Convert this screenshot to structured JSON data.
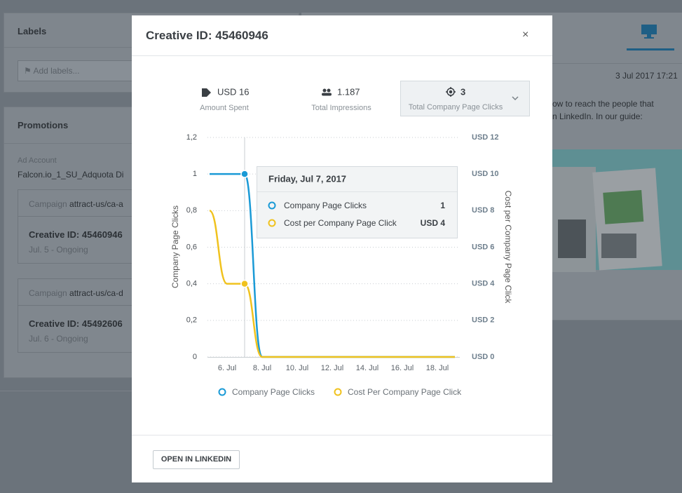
{
  "sidebar": {
    "labels_title": "Labels",
    "labels_placeholder": "Add labels...",
    "promotions_title": "Promotions",
    "ad_account_label": "Ad Account",
    "ad_account_value": "Falcon.io_1_SU_Adquota Di",
    "campaigns": [
      {
        "campaign_label": "Campaign",
        "campaign_value": "attract-us/ca-a",
        "creative": "Creative ID: 45460946",
        "dates": "Jul. 5 - Ongoing"
      },
      {
        "campaign_label": "Campaign",
        "campaign_value": "attract-us/ca-d",
        "creative": "Creative ID: 45492606",
        "dates": "Jul. 6 - Ongoing"
      }
    ]
  },
  "preview": {
    "timestamp": "3 Jul 2017 17:21",
    "lines": [
      "ow to reach the people that",
      "n LinkedIn. In our guide:"
    ]
  },
  "modal": {
    "title": "Creative ID: 45460946",
    "close": "×",
    "stats": [
      {
        "value": "USD 16",
        "label": "Amount Spent"
      },
      {
        "value": "1.187",
        "label": "Total Impressions"
      },
      {
        "value": "3",
        "label": "Total Company Page Clicks"
      }
    ],
    "tooltip": {
      "title": "Friday, Jul 7, 2017",
      "items": [
        {
          "name": "Company Page Clicks",
          "value": "1"
        },
        {
          "name": "Cost per Company Page Click",
          "value": "USD 4"
        }
      ]
    },
    "button": "OPEN IN LINKEDIN"
  },
  "chart_data": {
    "type": "line",
    "y_label": "Company Page Clicks",
    "y2_label": "Cost per Company Page Click",
    "categories": [
      null,
      "6. Jul",
      null,
      "8. Jul",
      null,
      "10. Jul",
      null,
      "12. Jul",
      null,
      "14. Jul",
      null,
      "16. Jul",
      null,
      "18. Jul",
      null
    ],
    "series": [
      {
        "name": "Company Page Clicks",
        "color": "#1a9ad6",
        "values": [
          1,
          1,
          1,
          0,
          0,
          0,
          0,
          0,
          0,
          0,
          0,
          0,
          0,
          0,
          0
        ]
      },
      {
        "name": "Cost Per Company Page Click",
        "color": "#f0c21e",
        "axis": "y2",
        "values": [
          8,
          4,
          4,
          0,
          0,
          0,
          0,
          0,
          0,
          0,
          0,
          0,
          0,
          0,
          0
        ]
      }
    ],
    "ylim": [
      0,
      1.2
    ],
    "yticks": [
      0,
      {
        "value": 0.2,
        "label": "0,2"
      },
      {
        "value": 0.4,
        "label": "0,4"
      },
      {
        "value": 0.6,
        "label": "0,6"
      },
      {
        "value": 0.8,
        "label": "0,8"
      },
      1,
      {
        "value": 1.2,
        "label": "1,2"
      }
    ],
    "y2lim": [
      0,
      12
    ],
    "y2ticks": [
      {
        "value": 0,
        "label": "USD 0"
      },
      {
        "value": 2,
        "label": "USD 2"
      },
      {
        "value": 4,
        "label": "USD 4"
      },
      {
        "value": 6,
        "label": "USD 6"
      },
      {
        "value": 8,
        "label": "USD 8"
      },
      {
        "value": 10,
        "label": "USD 10"
      },
      {
        "value": 12,
        "label": "USD 12"
      }
    ],
    "grid": true,
    "legend": "bottom"
  }
}
